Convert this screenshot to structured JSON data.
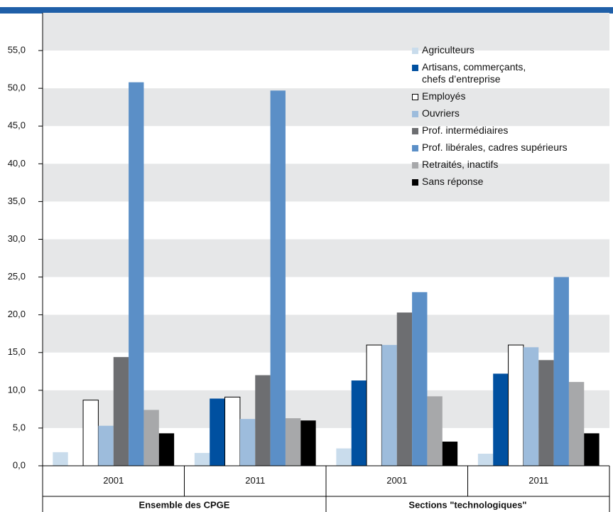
{
  "chart_data": {
    "type": "bar",
    "categories": [
      "2001",
      "2011",
      "2001",
      "2011"
    ],
    "groups": [
      {
        "label": "Ensemble des CPGE",
        "span": 2
      },
      {
        "label": "Sections \"technologiques\"",
        "span": 2
      }
    ],
    "series": [
      {
        "name": "Agriculteurs",
        "color": "#c9dcec",
        "values": [
          1.8,
          1.7,
          2.3,
          1.6
        ]
      },
      {
        "name": "Artisans, commerçants,\nchefs d’entreprise",
        "color": "#0050a0",
        "values": [
          null,
          8.9,
          11.3,
          12.2
        ]
      },
      {
        "name": "Employés",
        "color": "#ffffff",
        "values": [
          8.7,
          9.1,
          16.0,
          16.0
        ]
      },
      {
        "name": "Ouvriers",
        "color": "#9dbcdc",
        "values": [
          5.3,
          6.2,
          16.0,
          15.7
        ]
      },
      {
        "name": "Prof. intermédiaires",
        "color": "#6d6e71",
        "values": [
          14.4,
          12.0,
          20.3,
          14.0
        ]
      },
      {
        "name": "Prof. libérales, cadres supérieurs",
        "color": "#5b8fc7",
        "values": [
          50.8,
          49.7,
          23.0,
          25.0
        ]
      },
      {
        "name": "Retraités, inactifs",
        "color": "#a7a8aa",
        "values": [
          7.4,
          6.3,
          9.2,
          11.1
        ]
      },
      {
        "name": "Sans réponse",
        "color": "#000000",
        "values": [
          4.3,
          6.0,
          3.2,
          4.3
        ]
      }
    ],
    "ylim": [
      0,
      60
    ],
    "yticks": [
      {
        "value": 0,
        "label": "0,0"
      },
      {
        "value": 5,
        "label": "5,0"
      },
      {
        "value": 10,
        "label": "10,0"
      },
      {
        "value": 15,
        "label": "15,0"
      },
      {
        "value": 20,
        "label": "20,0"
      },
      {
        "value": 25,
        "label": "25,0"
      },
      {
        "value": 30,
        "label": "30,0"
      },
      {
        "value": 35,
        "label": "35,0"
      },
      {
        "value": 40,
        "label": "40,0"
      },
      {
        "value": 45,
        "label": "45,0"
      },
      {
        "value": 50,
        "label": "50,0"
      },
      {
        "value": 55,
        "label": "55,0"
      }
    ],
    "stripes": true,
    "legend_position": "top-right"
  }
}
